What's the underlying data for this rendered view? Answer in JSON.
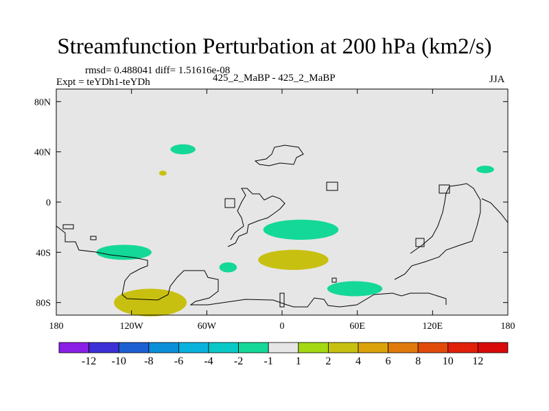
{
  "chart_data": {
    "type": "heatmap",
    "title": "Streamfunction Perturbation at 200 hPa (km2/s)",
    "subtitle_stats": "rmsd= 0.488041 diff= 1.51616e-08",
    "subtitle_left": "Expt = teYDh1-teYDh",
    "subtitle_center": "425_2_MaBP - 425_2_MaBP",
    "subtitle_right": "JJA",
    "xlim": [
      -180,
      180
    ],
    "ylim": [
      -90,
      90
    ],
    "x_ticks": [
      {
        "value": -180,
        "label": "180"
      },
      {
        "value": -120,
        "label": "120W"
      },
      {
        "value": -60,
        "label": "60W"
      },
      {
        "value": 0,
        "label": "0"
      },
      {
        "value": 60,
        "label": "60E"
      },
      {
        "value": 120,
        "label": "120E"
      },
      {
        "value": 180,
        "label": "180"
      }
    ],
    "y_ticks": [
      {
        "value": 80,
        "label": "80N"
      },
      {
        "value": 40,
        "label": "40N"
      },
      {
        "value": 0,
        "label": "0"
      },
      {
        "value": -40,
        "label": "40S"
      },
      {
        "value": -80,
        "label": "80S"
      }
    ],
    "colorbar": {
      "labels": [
        "-12",
        "-10",
        "-8",
        "-6",
        "-4",
        "-2",
        "-1",
        "1",
        "2",
        "4",
        "6",
        "8",
        "10",
        "12"
      ],
      "colors": [
        "#8a1fe6",
        "#3c2fd6",
        "#1c5fd2",
        "#0a8fd8",
        "#08b2dc",
        "#0ac8c8",
        "#14d897",
        "#e6e6e6",
        "#a3d812",
        "#c8c010",
        "#dca20a",
        "#e07a0a",
        "#e04a0a",
        "#e0200a",
        "#d80a0a"
      ]
    },
    "anomalies": [
      {
        "lon": -105,
        "lat": -80,
        "dlon": 29,
        "dlat": 11,
        "level": "2"
      },
      {
        "lon": -126,
        "lat": -40,
        "dlon": 22,
        "dlat": 6,
        "level": "-1"
      },
      {
        "lon": -79,
        "lat": 42,
        "dlon": 10,
        "dlat": 4,
        "level": "-1"
      },
      {
        "lon": -95,
        "lat": 23,
        "dlon": 3,
        "dlat": 2,
        "level": "2"
      },
      {
        "lon": -43,
        "lat": -52,
        "dlon": 7,
        "dlat": 4,
        "level": "-1"
      },
      {
        "lon": 15,
        "lat": -22,
        "dlon": 30,
        "dlat": 8,
        "level": "-1"
      },
      {
        "lon": 9,
        "lat": -46,
        "dlon": 28,
        "dlat": 8,
        "level": "2"
      },
      {
        "lon": 58,
        "lat": -69,
        "dlon": 22,
        "dlat": 6,
        "level": "-1"
      },
      {
        "lon": 162,
        "lat": 26,
        "dlon": 7,
        "dlat": 3,
        "level": "-1"
      }
    ]
  }
}
